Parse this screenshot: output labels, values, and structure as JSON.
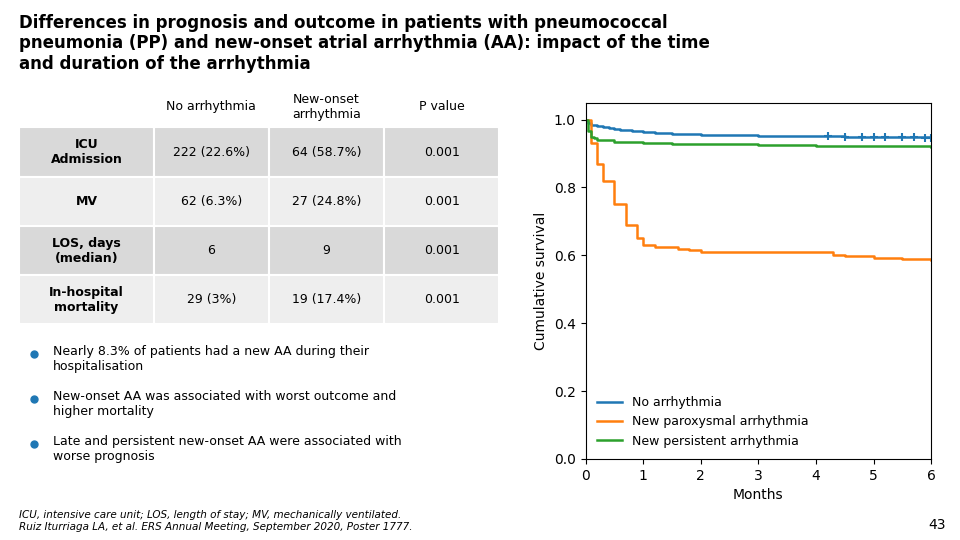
{
  "chart_data": {
    "type": "step",
    "title": "Differences in prognosis and outcome in patients with pneumococcal\npneumonia (PP) and new-onset atrial arrhythmia (AA): impact of the time\nand duration of the arrhythmia",
    "x_label": "Months",
    "y_label": "Cumulative survival",
    "xlim": [
      0,
      6
    ],
    "ylim": [
      0.0,
      1.05
    ],
    "xticks": [
      0,
      1,
      2,
      3,
      4,
      5,
      6
    ],
    "yticks": [
      0.0,
      0.2,
      0.4,
      0.6,
      0.8,
      1.0
    ],
    "legend": "lower left",
    "series": [
      {
        "name": "No arrhythmia",
        "x": [
          0,
          0.05,
          0.1,
          0.2,
          0.3,
          0.4,
          0.5,
          0.6,
          0.7,
          0.8,
          1.0,
          1.2,
          1.5,
          2.0,
          2.5,
          3.0,
          3.5,
          4.0,
          4.5,
          5.0,
          5.5,
          6.0
        ],
        "values": [
          1.0,
          0.99,
          0.985,
          0.981,
          0.978,
          0.975,
          0.972,
          0.97,
          0.968,
          0.966,
          0.963,
          0.96,
          0.958,
          0.956,
          0.954,
          0.953,
          0.952,
          0.951,
          0.95,
          0.949,
          0.948,
          0.947
        ],
        "marker": "+",
        "censors": {
          "x": [
            4.2,
            4.5,
            4.8,
            5.0,
            5.2,
            5.5,
            5.7,
            5.9,
            6.0
          ],
          "y": [
            0.951,
            0.95,
            0.949,
            0.949,
            0.948,
            0.948,
            0.948,
            0.947,
            0.947
          ]
        }
      },
      {
        "name": "New paroxysmal arrhythmia",
        "x": [
          0,
          0.1,
          0.2,
          0.3,
          0.5,
          0.7,
          0.9,
          1.0,
          1.1,
          1.2,
          1.4,
          1.6,
          1.8,
          2.0,
          2.2,
          2.5,
          3.0,
          4.0,
          4.3,
          4.5,
          5.0,
          5.5,
          6.0
        ],
        "values": [
          1.0,
          0.93,
          0.87,
          0.82,
          0.75,
          0.69,
          0.65,
          0.63,
          0.63,
          0.625,
          0.625,
          0.62,
          0.615,
          0.61,
          0.61,
          0.61,
          0.61,
          0.61,
          0.6,
          0.598,
          0.592,
          0.59,
          0.585
        ]
      },
      {
        "name": "New persistent arrhythmia",
        "x": [
          0,
          0.05,
          0.1,
          0.15,
          0.2,
          0.5,
          1.0,
          1.5,
          2.0,
          3.0,
          4.0,
          5.0,
          6.0
        ],
        "values": [
          1.0,
          0.965,
          0.95,
          0.945,
          0.94,
          0.935,
          0.93,
          0.928,
          0.928,
          0.925,
          0.923,
          0.922,
          0.92
        ]
      }
    ],
    "table": {
      "columns": [
        null,
        "No arrhythmia",
        "New-onset\narrhythmia",
        "P value"
      ],
      "rows": [
        [
          "ICU\nAdmission",
          "222 (22.6%)",
          "64 (58.7%)",
          "0.001"
        ],
        [
          "MV",
          "62 (6.3%)",
          "27 (24.8%)",
          "0.001"
        ],
        [
          "LOS, days\n(median)",
          "6",
          "9",
          "0.001"
        ],
        [
          "In-hospital\nmortality",
          "29 (3%)",
          "19 (17.4%)",
          "0.001"
        ]
      ]
    },
    "annotations": [
      "Nearly 8.3% of patients had a new AA during their\nhospitalisation",
      "New-onset AA was associated with worst outcome and\nhigher mortality",
      "Late and persistent new-onset AA were associated with\nworse prognosis"
    ],
    "footnote": "ICU, intensive care unit; LOS, length of stay; MV, mechanically ventilated.\nRuiz Iturriaga LA, et al. ERS Annual Meeting, September 2020, Poster 1777.",
    "page_number": "43"
  }
}
